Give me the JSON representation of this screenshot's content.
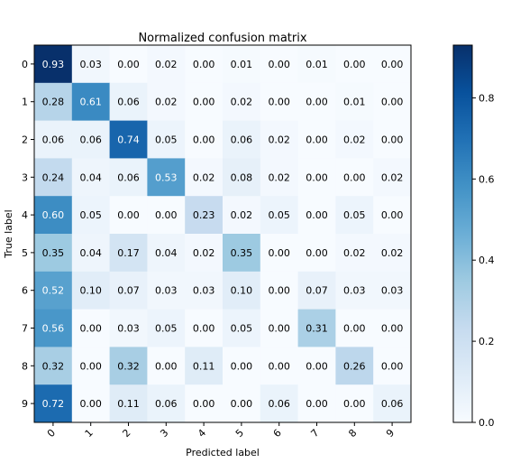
{
  "chart_data": {
    "type": "heatmap",
    "title": "Normalized confusion matrix",
    "xlabel": "Predicted label",
    "ylabel": "True label",
    "x_ticks": [
      "0",
      "1",
      "2",
      "3",
      "4",
      "5",
      "6",
      "7",
      "8",
      "9"
    ],
    "y_ticks": [
      "0",
      "1",
      "2",
      "3",
      "4",
      "5",
      "6",
      "7",
      "8",
      "9"
    ],
    "matrix": [
      [
        0.93,
        0.03,
        0.0,
        0.02,
        0.0,
        0.01,
        0.0,
        0.01,
        0.0,
        0.0
      ],
      [
        0.28,
        0.61,
        0.06,
        0.02,
        0.0,
        0.02,
        0.0,
        0.0,
        0.01,
        0.0
      ],
      [
        0.06,
        0.06,
        0.74,
        0.05,
        0.0,
        0.06,
        0.02,
        0.0,
        0.02,
        0.0
      ],
      [
        0.24,
        0.04,
        0.06,
        0.53,
        0.02,
        0.08,
        0.02,
        0.0,
        0.0,
        0.02
      ],
      [
        0.6,
        0.05,
        0.0,
        0.0,
        0.23,
        0.02,
        0.05,
        0.0,
        0.05,
        0.0
      ],
      [
        0.35,
        0.04,
        0.17,
        0.04,
        0.02,
        0.35,
        0.0,
        0.0,
        0.02,
        0.02
      ],
      [
        0.52,
        0.1,
        0.07,
        0.03,
        0.03,
        0.1,
        0.0,
        0.07,
        0.03,
        0.03
      ],
      [
        0.56,
        0.0,
        0.03,
        0.05,
        0.0,
        0.05,
        0.0,
        0.31,
        0.0,
        0.0
      ],
      [
        0.32,
        0.0,
        0.32,
        0.0,
        0.11,
        0.0,
        0.0,
        0.0,
        0.26,
        0.0
      ],
      [
        0.72,
        0.0,
        0.11,
        0.06,
        0.0,
        0.0,
        0.06,
        0.0,
        0.0,
        0.06
      ]
    ],
    "colormap": "Blues",
    "vmin": 0.0,
    "vmax": 0.93,
    "colorbar_ticks": [
      "0.0",
      "0.2",
      "0.4",
      "0.6",
      "0.8"
    ],
    "grid": false
  }
}
